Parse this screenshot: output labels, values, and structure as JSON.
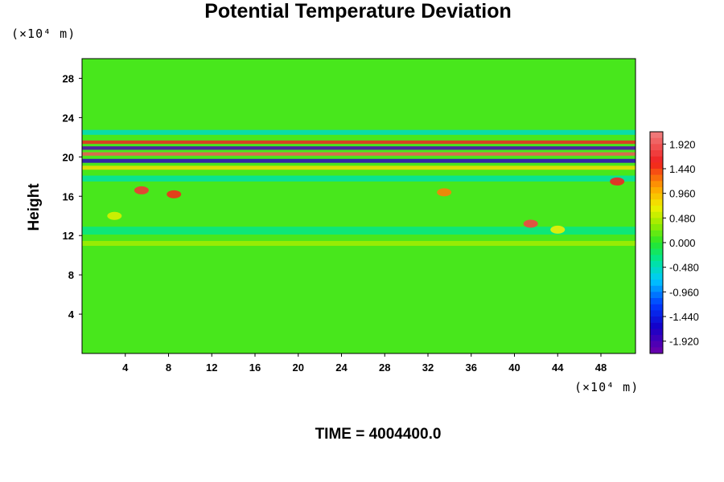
{
  "chart_data": {
    "type": "heatmap",
    "title": "Potential Temperature Deviation",
    "xlabel": "",
    "ylabel": "Height",
    "x_unit": "(×10⁴ m)",
    "y_unit": "(×10⁴ m)",
    "xlim": [
      0,
      51.2
    ],
    "ylim": [
      0,
      30
    ],
    "x_ticks": [
      4,
      8,
      12,
      16,
      20,
      24,
      28,
      32,
      36,
      40,
      44,
      48
    ],
    "y_ticks": [
      4,
      8,
      12,
      16,
      20,
      24,
      28
    ],
    "colorbar": {
      "range": [
        -2.16,
        2.16
      ],
      "tick_values": [
        1.92,
        1.44,
        0.96,
        0.48,
        0.0,
        -0.48,
        -0.96,
        -1.44,
        -1.92
      ],
      "tick_labels": [
        "1.920",
        "1.440",
        "0.960",
        "0.480",
        "0.000",
        "-0.480",
        "-0.960",
        "-1.440",
        "-1.920"
      ],
      "levels": 36
    },
    "background_value": 0.1,
    "features": [
      {
        "kind": "band",
        "y": 21.5,
        "value": 1.6,
        "thickness": 0.35
      },
      {
        "kind": "band",
        "y": 20.9,
        "value": -2.0,
        "thickness": 0.35
      },
      {
        "kind": "band",
        "y": 20.3,
        "value": 1.9,
        "thickness": 0.35
      },
      {
        "kind": "band",
        "y": 19.6,
        "value": -1.8,
        "thickness": 0.4
      },
      {
        "kind": "band",
        "y": 18.9,
        "value": 0.8,
        "thickness": 0.4
      },
      {
        "kind": "band",
        "y": 22.5,
        "value": -0.5,
        "thickness": 0.5
      },
      {
        "kind": "band",
        "y": 17.8,
        "value": -0.4,
        "thickness": 0.6
      },
      {
        "kind": "band",
        "y": 12.5,
        "value": -0.3,
        "thickness": 0.8
      },
      {
        "kind": "band",
        "y": 11.2,
        "value": 0.4,
        "thickness": 0.5
      },
      {
        "kind": "patch",
        "x": 5.5,
        "y": 16.6,
        "value": 1.7
      },
      {
        "kind": "patch",
        "x": 8.5,
        "y": 16.2,
        "value": 1.5
      },
      {
        "kind": "patch",
        "x": 41.5,
        "y": 13.2,
        "value": 1.8
      },
      {
        "kind": "patch",
        "x": 49.5,
        "y": 17.5,
        "value": 1.6
      },
      {
        "kind": "patch",
        "x": 33.5,
        "y": 16.4,
        "value": 1.2
      },
      {
        "kind": "patch",
        "x": 3.0,
        "y": 14.0,
        "value": 0.6
      },
      {
        "kind": "patch",
        "x": 44.0,
        "y": 12.6,
        "value": 0.7
      }
    ]
  },
  "time_label": "TIME = 4004400.0"
}
